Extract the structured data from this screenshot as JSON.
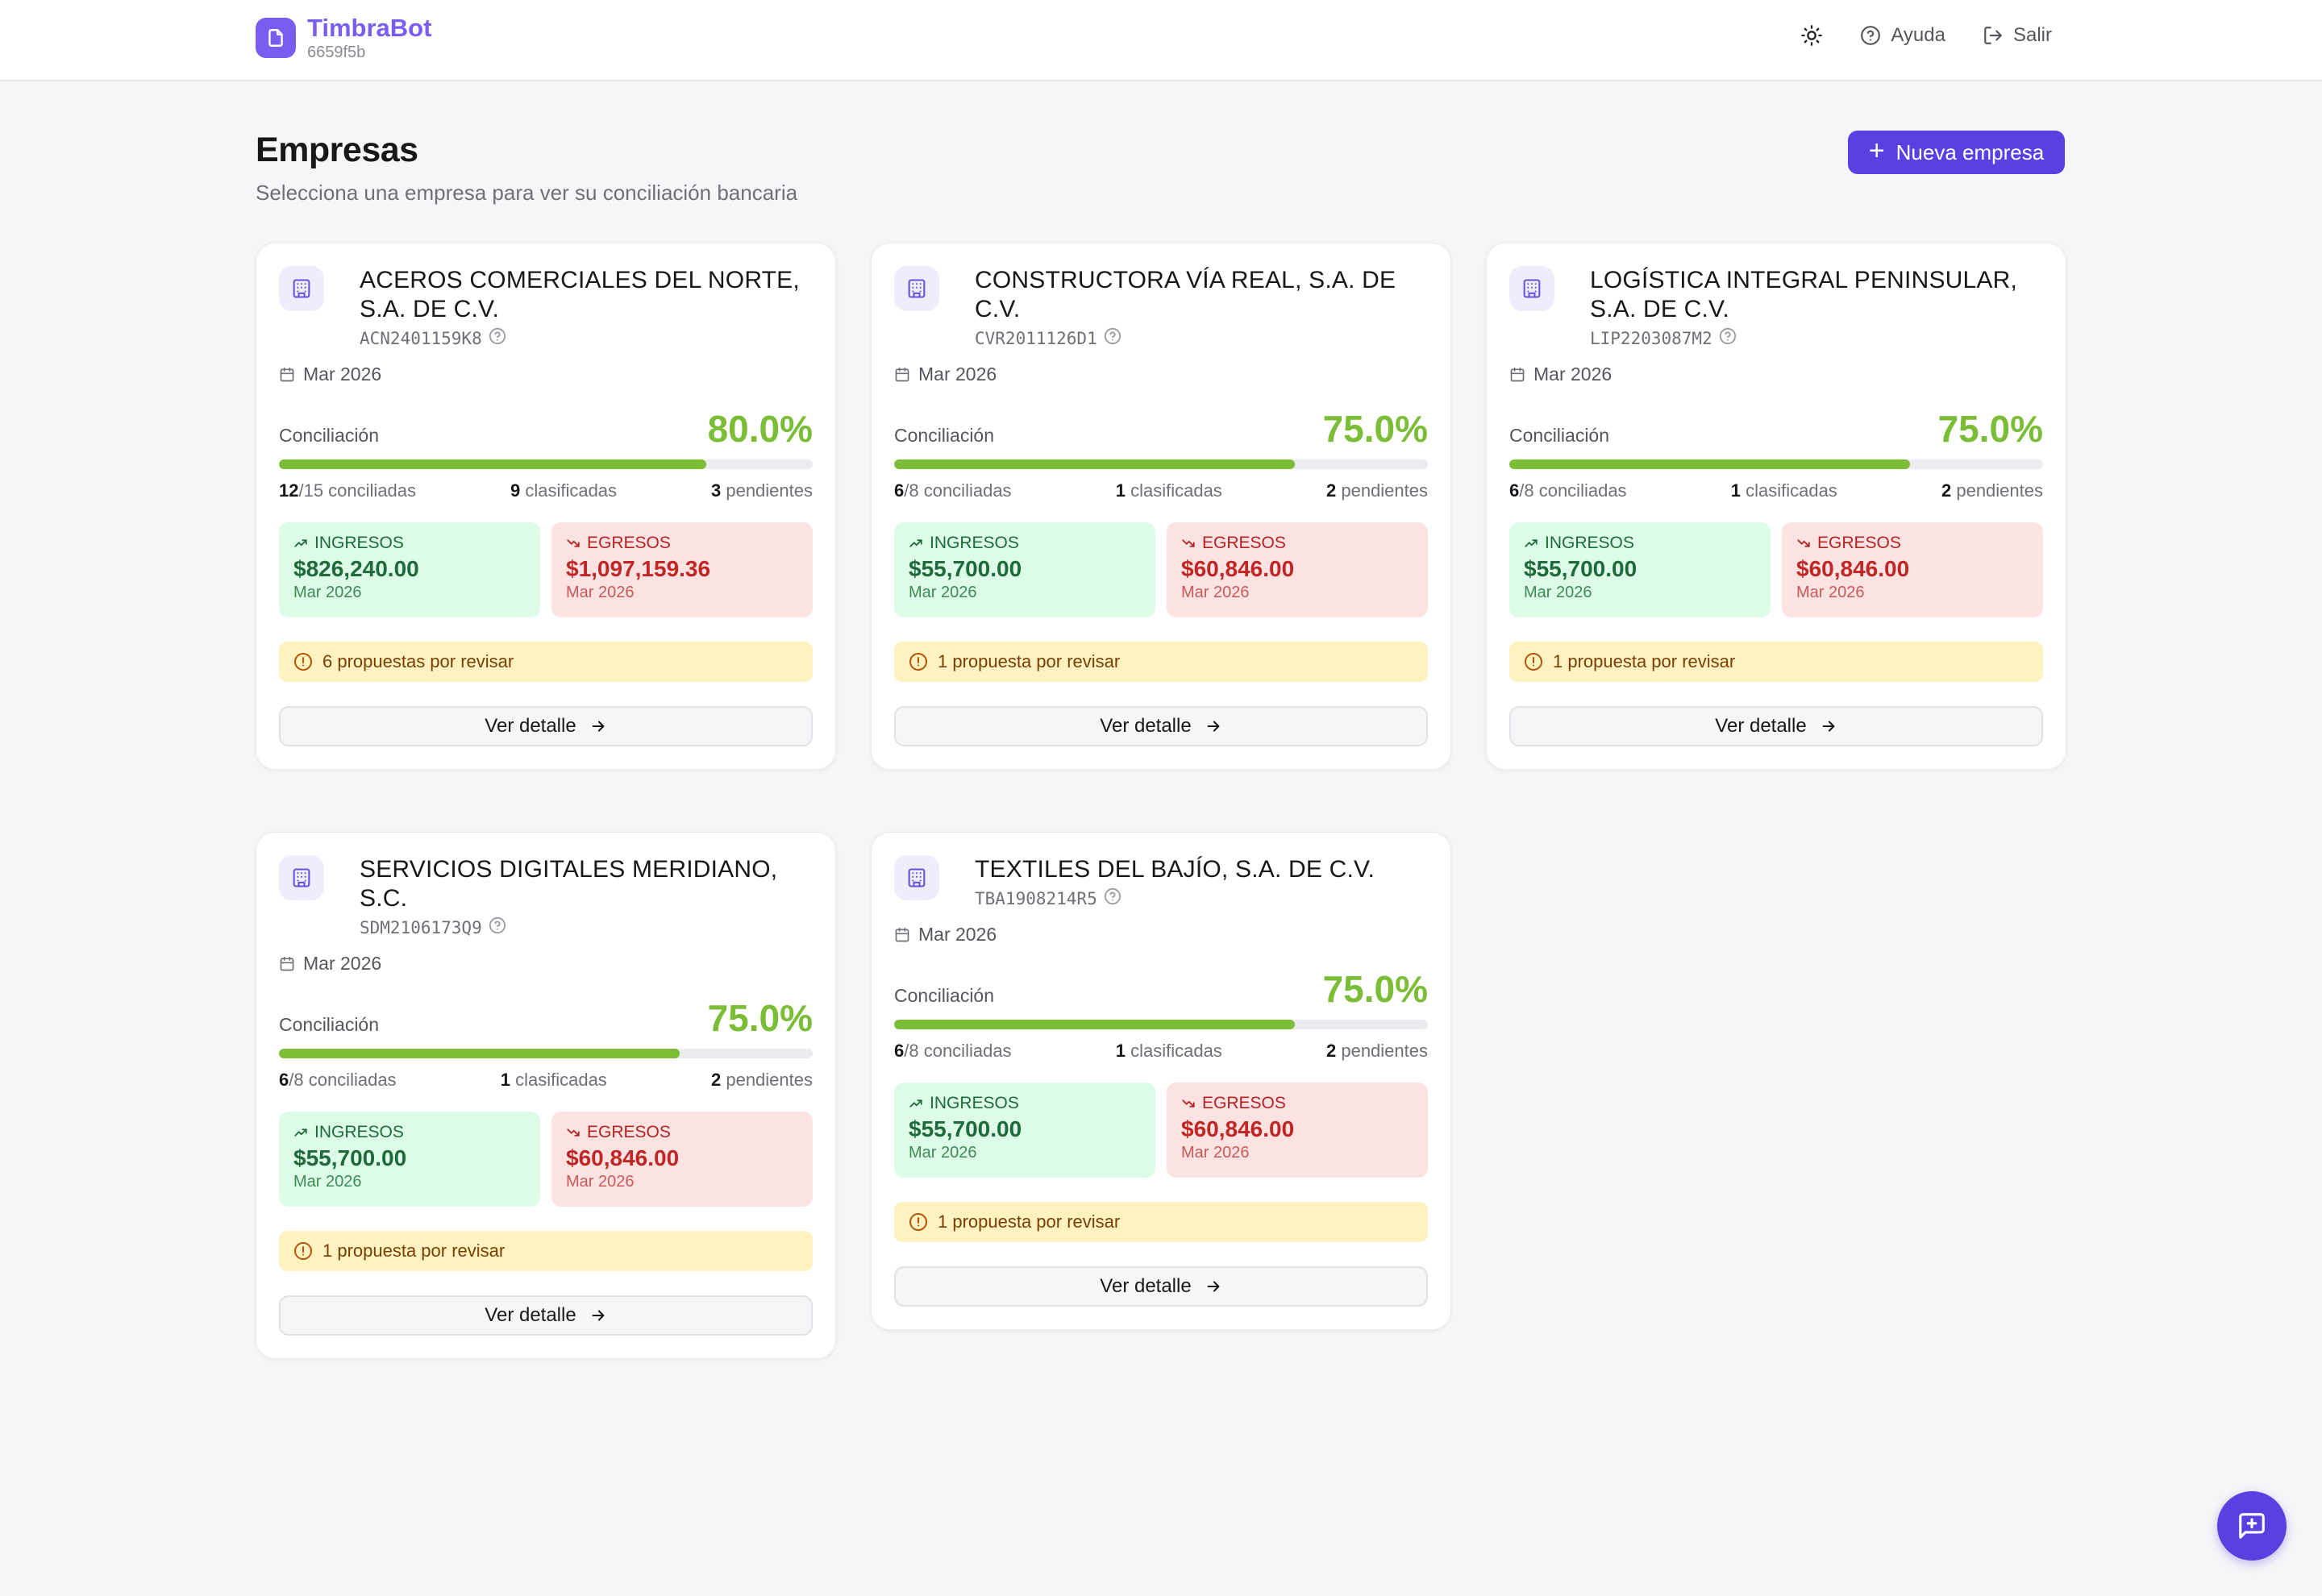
{
  "header": {
    "brand_name": "TimbraBot",
    "brand_sub": "6659f5b",
    "help_label": "Ayuda",
    "logout_label": "Salir"
  },
  "page": {
    "title": "Empresas",
    "subtitle": "Selecciona una empresa para ver su conciliación bancaria",
    "new_button_label": "Nueva empresa"
  },
  "labels": {
    "conciliacion": "Conciliación",
    "ingresos": "INGRESOS",
    "egresos": "EGRESOS",
    "ver_detalle": "Ver detalle"
  },
  "companies": [
    {
      "name": "ACEROS COMERCIALES DEL NORTE, S.A. DE C.V.",
      "rfc": "ACN2401159K8",
      "period": "Mar 2026",
      "pct": "80.0%",
      "progress": 0.8,
      "conciliadas": "12",
      "total": "/15 conciliadas",
      "clasificadas": "9",
      "clasificadas_label": "clasificadas",
      "pendientes": "3",
      "pendientes_label": "pendientes",
      "ingresos": "$826,240.00",
      "egresos": "$1,097,159.36",
      "alert": "6 propuestas por revisar"
    },
    {
      "name": "CONSTRUCTORA VÍA REAL, S.A. DE C.V.",
      "rfc": "CVR2011126D1",
      "period": "Mar 2026",
      "pct": "75.0%",
      "progress": 0.75,
      "conciliadas": "6",
      "total": "/8 conciliadas",
      "clasificadas": "1",
      "clasificadas_label": "clasificadas",
      "pendientes": "2",
      "pendientes_label": "pendientes",
      "ingresos": "$55,700.00",
      "egresos": "$60,846.00",
      "alert": "1 propuesta por revisar"
    },
    {
      "name": "LOGÍSTICA INTEGRAL PENINSULAR, S.A. DE C.V.",
      "rfc": "LIP2203087M2",
      "period": "Mar 2026",
      "pct": "75.0%",
      "progress": 0.75,
      "conciliadas": "6",
      "total": "/8 conciliadas",
      "clasificadas": "1",
      "clasificadas_label": "clasificadas",
      "pendientes": "2",
      "pendientes_label": "pendientes",
      "ingresos": "$55,700.00",
      "egresos": "$60,846.00",
      "alert": "1 propuesta por revisar"
    },
    {
      "name": "SERVICIOS DIGITALES MERIDIANO, S.C.",
      "rfc": "SDM2106173Q9",
      "period": "Mar 2026",
      "pct": "75.0%",
      "progress": 0.75,
      "conciliadas": "6",
      "total": "/8 conciliadas",
      "clasificadas": "1",
      "clasificadas_label": "clasificadas",
      "pendientes": "2",
      "pendientes_label": "pendientes",
      "ingresos": "$55,700.00",
      "egresos": "$60,846.00",
      "alert": "1 propuesta por revisar"
    },
    {
      "name": "TEXTILES DEL BAJÍO, S.A. DE C.V.",
      "rfc": "TBA1908214R5",
      "period": "Mar 2026",
      "pct": "75.0%",
      "progress": 0.75,
      "conciliadas": "6",
      "total": "/8 conciliadas",
      "clasificadas": "1",
      "clasificadas_label": "clasificadas",
      "pendientes": "2",
      "pendientes_label": "pendientes",
      "ingresos": "$55,700.00",
      "egresos": "$60,846.00",
      "alert": "1 propuesta por revisar"
    }
  ],
  "icons": {
    "brand": "file-icon",
    "theme": "sun-icon",
    "help": "help-circle-icon",
    "logout": "logout-icon",
    "company": "building-icon",
    "calendar": "calendar-icon",
    "trend_up": "trending-up-icon",
    "trend_down": "trending-down-icon",
    "alert": "alert-circle-icon",
    "arrow": "arrow-right-icon",
    "chat": "message-plus-icon"
  },
  "colors": {
    "brand": "#7b5cf0",
    "primary": "#5b3fe0",
    "progress": "#7bbd36",
    "ingresos_bg": "#dcfce7",
    "egresos_bg": "#fde2e2",
    "alert_bg": "#fef3c0"
  }
}
